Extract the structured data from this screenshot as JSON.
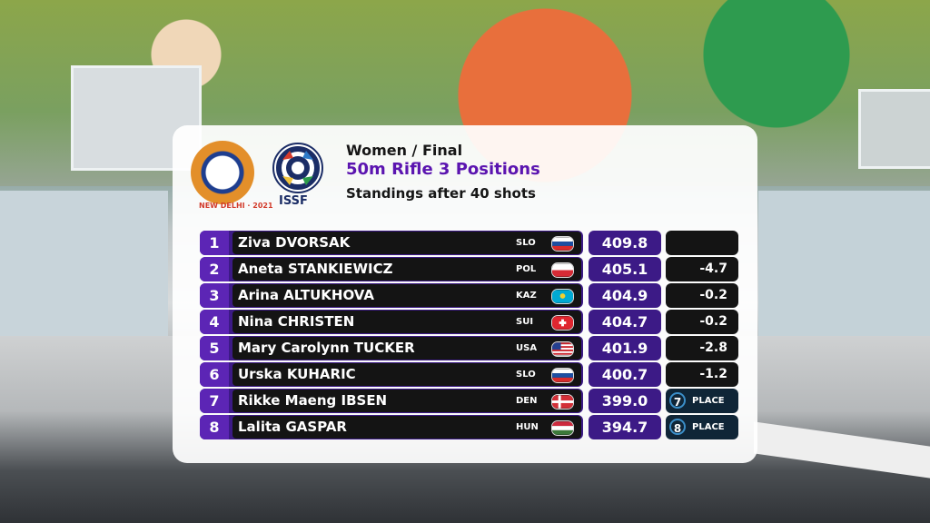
{
  "header": {
    "logo_world_cup_text": "NEW DELHI · 2021",
    "logo_issf_text": "ISSF",
    "line1": "Women / Final",
    "line2": "50m Rifle 3 Positions",
    "line3": "Standings after 40 shots"
  },
  "colors": {
    "purple_primary": "#3c1a86",
    "purple_text": "#5b15b0",
    "black_bar": "#141414",
    "place_badge": "#0f2537"
  },
  "standings": [
    {
      "rank": "1",
      "name": "Ziva DVORSAK",
      "noc": "SLO",
      "flag": "slovenia-flag-icon",
      "score": "409.8",
      "diff": ""
    },
    {
      "rank": "2",
      "name": "Aneta STANKIEWICZ",
      "noc": "POL",
      "flag": "poland-flag-icon",
      "score": "405.1",
      "diff": "-4.7"
    },
    {
      "rank": "3",
      "name": "Arina ALTUKHOVA",
      "noc": "KAZ",
      "flag": "kazakhstan-flag-icon",
      "score": "404.9",
      "diff": "-0.2"
    },
    {
      "rank": "4",
      "name": "Nina CHRISTEN",
      "noc": "SUI",
      "flag": "switzerland-flag-icon",
      "score": "404.7",
      "diff": "-0.2"
    },
    {
      "rank": "5",
      "name": "Mary Carolynn TUCKER",
      "noc": "USA",
      "flag": "usa-flag-icon",
      "score": "401.9",
      "diff": "-2.8"
    },
    {
      "rank": "6",
      "name": "Urska KUHARIC",
      "noc": "SLO",
      "flag": "slovenia-flag-icon",
      "score": "400.7",
      "diff": "-1.2"
    },
    {
      "rank": "7",
      "name": "Rikke Maeng IBSEN",
      "noc": "DEN",
      "flag": "denmark-flag-icon",
      "score": "399.0",
      "place_num": "7",
      "place_label": "PLACE"
    },
    {
      "rank": "8",
      "name": "Lalita GASPAR",
      "noc": "HUN",
      "flag": "hungary-flag-icon",
      "score": "394.7",
      "place_num": "8",
      "place_label": "PLACE"
    }
  ]
}
